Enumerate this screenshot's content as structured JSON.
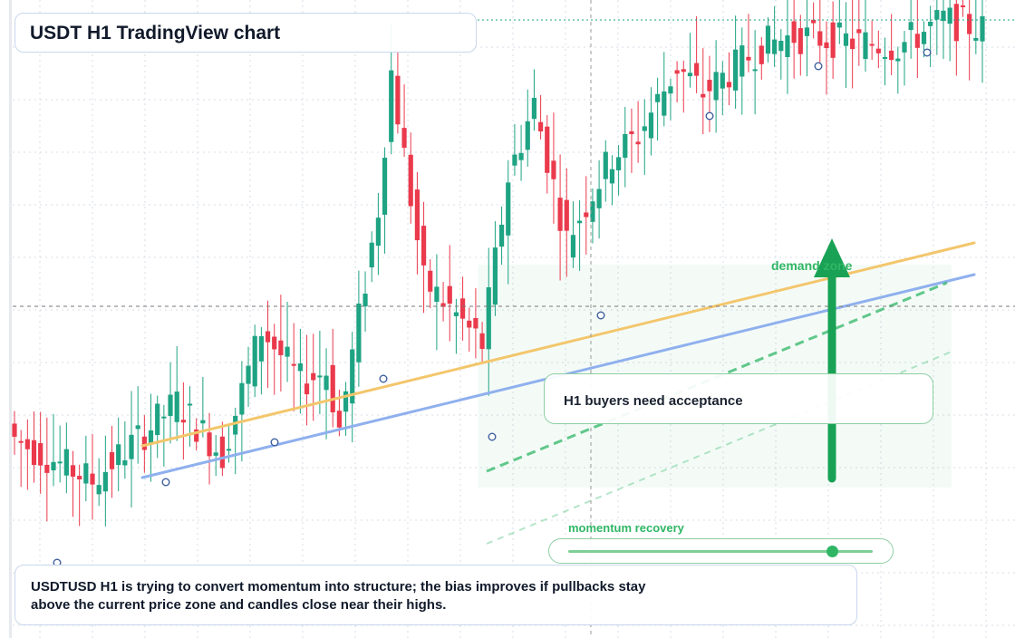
{
  "title": "USDT H1 TradingView chart",
  "callout": "H1 buyers need acceptance",
  "zone_label": "demand zone",
  "momentum": {
    "label": "momentum recovery",
    "level": 0.87
  },
  "caption": "USDTUSD H1 is trying to convert momentum into structure; the bias improves if pullbacks stay above the current price zone and candles close near their highs.",
  "colors": {
    "bull": "#1ea383",
    "bear": "#ea3a4c",
    "trend_orange": "#f3c66c",
    "trend_blue": "#8fb0ee",
    "zone_green": "#2fb665",
    "grid": "#d7dce4",
    "crosshair": "#999999"
  },
  "chart_data": {
    "type": "candlestick",
    "timeframe": "H1",
    "symbol": "USDTUSD",
    "y_scale": [
      0,
      100
    ],
    "grid": true,
    "bias": "bullish",
    "candle_count": 150,
    "trend_levels": {
      "orange_channel": [
        [
          0,
          35
        ],
        [
          100,
          74
        ]
      ],
      "blue_channel": [
        [
          0,
          30
        ],
        [
          100,
          68
        ]
      ]
    },
    "segments": [
      {
        "from": 0,
        "to": 12,
        "start": 20,
        "end": 12
      },
      {
        "from": 12,
        "to": 25,
        "start": 12,
        "end": 27
      },
      {
        "from": 25,
        "to": 32,
        "start": 27,
        "end": 17
      },
      {
        "from": 32,
        "to": 38,
        "start": 17,
        "end": 41
      },
      {
        "from": 38,
        "to": 44,
        "start": 41,
        "end": 31
      },
      {
        "from": 44,
        "to": 48,
        "start": 31,
        "end": 33
      },
      {
        "from": 48,
        "to": 50,
        "start": 33,
        "end": 22
      },
      {
        "from": 50,
        "to": 56,
        "start": 22,
        "end": 64
      },
      {
        "from": 56,
        "to": 58,
        "start": 64,
        "end": 90
      },
      {
        "from": 58,
        "to": 63,
        "start": 90,
        "end": 50
      },
      {
        "from": 63,
        "to": 67,
        "start": 50,
        "end": 45
      },
      {
        "from": 67,
        "to": 72,
        "start": 45,
        "end": 38
      },
      {
        "from": 72,
        "to": 76,
        "start": 38,
        "end": 70
      },
      {
        "from": 76,
        "to": 80,
        "start": 70,
        "end": 84
      },
      {
        "from": 80,
        "to": 85,
        "start": 84,
        "end": 58
      },
      {
        "from": 85,
        "to": 92,
        "start": 58,
        "end": 74
      },
      {
        "from": 92,
        "to": 96,
        "start": 74,
        "end": 78
      },
      {
        "from": 96,
        "to": 102,
        "start": 78,
        "end": 91
      },
      {
        "from": 102,
        "to": 106,
        "start": 91,
        "end": 86
      },
      {
        "from": 106,
        "to": 115,
        "start": 86,
        "end": 95
      },
      {
        "from": 115,
        "to": 120,
        "start": 95,
        "end": 97
      },
      {
        "from": 120,
        "to": 128,
        "start": 97,
        "end": 96
      },
      {
        "from": 128,
        "to": 136,
        "start": 96,
        "end": 95
      },
      {
        "from": 136,
        "to": 143,
        "start": 95,
        "end": 100
      },
      {
        "from": 143,
        "to": 150,
        "start": 100,
        "end": 98
      }
    ]
  }
}
